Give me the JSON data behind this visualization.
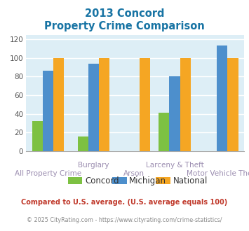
{
  "title_line1": "2013 Concord",
  "title_line2": "Property Crime Comparison",
  "title_color": "#1874a4",
  "categories": [
    "All Property Crime",
    "Burglary",
    "Arson",
    "Larceny & Theft",
    "Motor Vehicle Theft"
  ],
  "groups": [
    {
      "label": "Concord",
      "color": "#7dc142",
      "values": [
        32,
        16,
        0,
        41,
        0
      ]
    },
    {
      "label": "Michigan",
      "color": "#4d8fcc",
      "values": [
        86,
        94,
        0,
        80,
        113
      ]
    },
    {
      "label": "National",
      "color": "#f5a623",
      "values": [
        100,
        100,
        100,
        100,
        100
      ]
    }
  ],
  "ylim": [
    0,
    125
  ],
  "yticks": [
    0,
    20,
    40,
    60,
    80,
    100,
    120
  ],
  "bg_color": "#ddeef6",
  "fig_bg_color": "#ffffff",
  "footer1": "Compared to U.S. average. (U.S. average equals 100)",
  "footer2": "© 2025 CityRating.com - https://www.cityrating.com/crime-statistics/",
  "footer1_color": "#c0392b",
  "footer2_color": "#888888",
  "xlabel_color": "#9b8db0",
  "tick_color": "#555555",
  "grid_color": "#ffffff",
  "bar_width": 0.21,
  "x_centers": [
    0.38,
    1.28,
    2.08,
    2.88,
    3.82
  ],
  "xlim": [
    -0.05,
    4.25
  ],
  "row1_labels": {
    "1": "Burglary",
    "3": "Larceny & Theft"
  },
  "row2_labels": {
    "0": "All Property Crime",
    "2": "Arson",
    "4": "Motor Vehicle Theft"
  },
  "legend_items": [
    {
      "label": "Concord",
      "color": "#7dc142"
    },
    {
      "label": "Michigan",
      "color": "#4d8fcc"
    },
    {
      "label": "National",
      "color": "#f5a623"
    }
  ]
}
